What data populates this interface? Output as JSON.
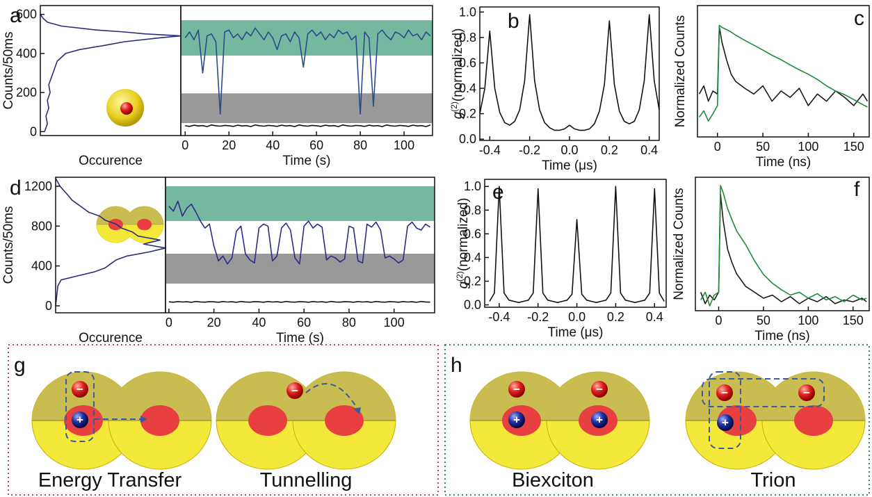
{
  "chart_data": [
    {
      "type": "line",
      "label": "a",
      "ylabel": "Counts/50ms",
      "xlabel": "Occurence",
      "xlim": [
        0,
        100
      ],
      "ylim": [
        -20,
        645
      ],
      "yticks": [
        0,
        200,
        400,
        600
      ],
      "series": [
        {
          "color": "#2b2b7a",
          "x": [
            3,
            5,
            4,
            6,
            5,
            7,
            6,
            8,
            10,
            12,
            18,
            28,
            45,
            60,
            85,
            100,
            75,
            60,
            40,
            15,
            5,
            2,
            0
          ],
          "values": [
            0,
            40,
            80,
            120,
            160,
            200,
            240,
            280,
            320,
            360,
            400,
            420,
            440,
            460,
            480,
            490,
            500,
            510,
            520,
            540,
            560,
            580,
            600
          ]
        }
      ]
    },
    {
      "type": "line",
      "xlabel": "Time (s)",
      "xlim": [
        -2,
        113
      ],
      "ylim": [
        -20,
        645
      ],
      "xticks": [
        0,
        20,
        40,
        60,
        80,
        100
      ],
      "bands": [
        {
          "color": "#3a9a78",
          "range": [
            389,
            570
          ]
        },
        {
          "color": "#6e6e6e",
          "range": [
            44,
            196
          ]
        }
      ],
      "x": [
        0,
        2,
        4,
        6,
        8,
        10,
        12,
        14,
        16,
        18,
        20,
        22,
        24,
        26,
        28,
        30,
        32,
        34,
        36,
        38,
        40,
        42,
        44,
        46,
        48,
        50,
        52,
        54,
        56,
        58,
        60,
        62,
        64,
        66,
        68,
        70,
        72,
        74,
        76,
        78,
        80,
        82,
        84,
        86,
        88,
        90,
        92,
        94,
        96,
        98,
        100,
        102,
        104,
        106,
        108,
        110,
        112
      ],
      "series": [
        {
          "color": "#2a4a8a",
          "values": [
            480,
            510,
            470,
            520,
            300,
            490,
            500,
            460,
            90,
            510,
            520,
            480,
            500,
            470,
            510,
            490,
            530,
            500,
            470,
            510,
            480,
            420,
            490,
            500,
            460,
            510,
            480,
            330,
            500,
            520,
            490,
            510,
            470,
            500,
            480,
            520,
            500,
            510,
            470,
            490,
            90,
            510,
            480,
            130,
            500,
            520,
            490,
            470,
            510,
            500,
            480,
            520,
            490,
            500,
            470,
            510,
            490
          ]
        },
        {
          "color": "#111111",
          "values": [
            30,
            27,
            33,
            29,
            31,
            26,
            34,
            30,
            28,
            32,
            30,
            27,
            33,
            29,
            31,
            26,
            34,
            30,
            28,
            32,
            30,
            27,
            33,
            29,
            31,
            26,
            34,
            30,
            28,
            32,
            30,
            27,
            33,
            29,
            31,
            26,
            34,
            30,
            28,
            32,
            30,
            27,
            33,
            29,
            31,
            26,
            34,
            30,
            28,
            32,
            30,
            27,
            33,
            29,
            31,
            26,
            34
          ]
        }
      ]
    },
    {
      "type": "line",
      "label": "b",
      "ylabel": [
        "g",
        "(2)",
        "(normalized)"
      ],
      "xlabel": "Time (μs)",
      "xlim": [
        -0.45,
        0.45
      ],
      "ylim": [
        -0.01,
        1.04
      ],
      "yticks": [
        {
          "value": 0,
          "label": "0.0"
        },
        0.2,
        0.4,
        0.6,
        0.8,
        {
          "value": 1,
          "label": "1.0"
        }
      ],
      "xticks": [
        -0.4,
        -0.2,
        {
          "value": 0,
          "label": "0.0"
        },
        0.2,
        0.4
      ],
      "x": [
        -0.45,
        -0.425,
        -0.4,
        -0.375,
        -0.35,
        -0.325,
        -0.3,
        -0.275,
        -0.25,
        -0.225,
        -0.2,
        -0.175,
        -0.15,
        -0.125,
        -0.1,
        -0.075,
        -0.05,
        -0.025,
        0,
        0.025,
        0.05,
        0.075,
        0.1,
        0.125,
        0.15,
        0.175,
        0.2,
        0.225,
        0.25,
        0.275,
        0.3,
        0.325,
        0.35,
        0.375,
        0.4,
        0.425,
        0.45
      ],
      "series": [
        {
          "color": "#111111",
          "values": [
            0.2,
            0.4,
            0.85,
            0.4,
            0.21,
            0.13,
            0.11,
            0.14,
            0.23,
            0.46,
            0.98,
            0.46,
            0.23,
            0.13,
            0.09,
            0.07,
            0.07,
            0.08,
            0.11,
            0.08,
            0.07,
            0.07,
            0.08,
            0.12,
            0.22,
            0.43,
            0.93,
            0.43,
            0.22,
            0.14,
            0.12,
            0.14,
            0.23,
            0.46,
            0.98,
            0.46,
            0.23
          ]
        }
      ]
    },
    {
      "type": "line",
      "label": "c",
      "yscale": "log",
      "ylabel": "Normalized Counts",
      "xlabel": "Time (ns)",
      "xlim": [
        -22,
        167
      ],
      "ylim": [
        0.02,
        2
      ],
      "xticks": [
        0,
        50,
        100,
        150
      ],
      "x": [
        -20,
        -15,
        -10,
        -5,
        0,
        2,
        5,
        10,
        15,
        20,
        30,
        40,
        50,
        60,
        70,
        80,
        90,
        100,
        110,
        120,
        130,
        140,
        150,
        160,
        165
      ],
      "series": [
        {
          "color": "#1a1a1a",
          "values": [
            0.09,
            0.12,
            0.07,
            0.1,
            0.09,
            0.95,
            0.55,
            0.3,
            0.18,
            0.14,
            0.11,
            0.09,
            0.12,
            0.07,
            0.1,
            0.08,
            0.11,
            0.06,
            0.09,
            0.07,
            0.1,
            0.08,
            0.06,
            0.09,
            0.07
          ]
        },
        {
          "color": "#1e8a3c",
          "values": [
            0.04,
            0.05,
            0.035,
            0.045,
            0.06,
            1.0,
            0.93,
            0.86,
            0.79,
            0.71,
            0.59,
            0.5,
            0.42,
            0.35,
            0.3,
            0.25,
            0.21,
            0.18,
            0.15,
            0.12,
            0.1,
            0.088,
            0.074,
            0.062,
            0.057
          ]
        }
      ]
    },
    {
      "type": "line",
      "label": "d",
      "ylabel": "Counts/50ms",
      "xlabel": "Occurence",
      "xlim": [
        0,
        100
      ],
      "ylim": [
        -70,
        1290
      ],
      "yticks": [
        0,
        400,
        800,
        1200
      ],
      "series": [
        {
          "color": "#2b2b7a",
          "x": [
            0,
            2,
            5,
            20,
            35,
            45,
            50,
            55,
            65,
            85,
            100,
            80,
            95,
            75,
            70,
            60,
            55,
            45,
            40,
            30,
            25,
            20,
            15,
            12,
            8,
            4,
            0
          ],
          "values": [
            0,
            200,
            260,
            300,
            340,
            380,
            420,
            460,
            500,
            540,
            580,
            620,
            660,
            700,
            740,
            780,
            820,
            860,
            900,
            940,
            980,
            1020,
            1060,
            1100,
            1150,
            1200,
            1280
          ]
        }
      ]
    },
    {
      "type": "line",
      "xlabel": "Time (s)",
      "xlim": [
        -1.5,
        118
      ],
      "ylim": [
        -70,
        1290
      ],
      "xticks": [
        0,
        20,
        40,
        60,
        80,
        100
      ],
      "bands": [
        {
          "color": "#3a9a78",
          "range": [
            851,
            1200
          ]
        },
        {
          "color": "#6e6e6e",
          "range": [
            223,
            523
          ]
        }
      ],
      "x": [
        0,
        2,
        4,
        6,
        8,
        10,
        12,
        14,
        16,
        18,
        20,
        22,
        24,
        26,
        28,
        30,
        32,
        34,
        36,
        38,
        40,
        42,
        44,
        46,
        48,
        50,
        52,
        54,
        56,
        58,
        60,
        62,
        64,
        66,
        68,
        70,
        72,
        74,
        76,
        78,
        80,
        82,
        84,
        86,
        88,
        90,
        92,
        94,
        96,
        98,
        100,
        102,
        104,
        106,
        108,
        110,
        112,
        114,
        116
      ],
      "series": [
        {
          "color": "#2b2b8a",
          "values": [
            1000,
            950,
            1050,
            900,
            980,
            1020,
            940,
            850,
            780,
            820,
            600,
            450,
            500,
            420,
            480,
            750,
            800,
            520,
            460,
            430,
            780,
            820,
            800,
            450,
            500,
            780,
            830,
            760,
            480,
            420,
            800,
            850,
            780,
            820,
            790,
            460,
            500,
            480,
            440,
            470,
            800,
            780,
            450,
            430,
            820,
            790,
            840,
            760,
            480,
            500,
            470,
            430,
            460,
            800,
            840,
            780,
            760,
            820,
            790
          ]
        },
        {
          "color": "#111111",
          "values": [
            40,
            36,
            43,
            38,
            41,
            35,
            44,
            39,
            37,
            42,
            40,
            36,
            43,
            38,
            41,
            35,
            44,
            39,
            37,
            42,
            40,
            36,
            43,
            38,
            41,
            35,
            44,
            39,
            37,
            42,
            40,
            36,
            43,
            38,
            41,
            35,
            44,
            39,
            37,
            42,
            40,
            36,
            43,
            38,
            41,
            35,
            44,
            39,
            37,
            42,
            40,
            36,
            43,
            38,
            41,
            35,
            44,
            39,
            37
          ]
        }
      ]
    },
    {
      "type": "line",
      "label": "e",
      "ylabel": [
        "g",
        "(2)",
        "(normalized)"
      ],
      "xlabel": "Time (μs)",
      "xlim": [
        -0.475,
        0.46
      ],
      "ylim": [
        -0.02,
        1.06
      ],
      "yticks": [
        {
          "value": 0,
          "label": "0.0"
        },
        0.2,
        0.4,
        0.6,
        0.8,
        {
          "value": 1,
          "label": "1.0"
        }
      ],
      "xticks": [
        -0.4,
        -0.2,
        {
          "value": 0,
          "label": "0.0"
        },
        0.2,
        0.4
      ],
      "x": [
        -0.45,
        -0.425,
        -0.4,
        -0.375,
        -0.35,
        -0.325,
        -0.3,
        -0.275,
        -0.25,
        -0.225,
        -0.2,
        -0.175,
        -0.15,
        -0.125,
        -0.1,
        -0.075,
        -0.05,
        -0.025,
        0,
        0.025,
        0.05,
        0.075,
        0.1,
        0.125,
        0.15,
        0.175,
        0.2,
        0.225,
        0.25,
        0.275,
        0.3,
        0.325,
        0.35,
        0.375,
        0.4,
        0.425,
        0.45
      ],
      "series": [
        {
          "color": "#111111",
          "values": [
            0.03,
            0.1,
            1.0,
            0.1,
            0.04,
            0.03,
            0.02,
            0.03,
            0.04,
            0.1,
            0.98,
            0.1,
            0.04,
            0.03,
            0.02,
            0.03,
            0.04,
            0.09,
            0.72,
            0.09,
            0.04,
            0.03,
            0.02,
            0.03,
            0.04,
            0.1,
            1.0,
            0.1,
            0.04,
            0.03,
            0.02,
            0.03,
            0.04,
            0.1,
            0.98,
            0.1,
            0.03
          ]
        }
      ]
    },
    {
      "type": "line",
      "label": "f",
      "yscale": "log",
      "ylabel": "Normalized Counts",
      "xlabel": "Time (ns)",
      "xlim": [
        -26,
        168
      ],
      "ylim": [
        0.01,
        1.5
      ],
      "xticks": [
        0,
        50,
        100,
        150
      ],
      "x": [
        -20,
        -15,
        -10,
        -5,
        0,
        2,
        5,
        10,
        15,
        20,
        30,
        40,
        50,
        60,
        70,
        80,
        90,
        100,
        110,
        120,
        130,
        140,
        150,
        160,
        165
      ],
      "series": [
        {
          "color": "#1a1a1a",
          "values": [
            0.02,
            0.013,
            0.018,
            0.015,
            0.02,
            0.8,
            0.3,
            0.1,
            0.06,
            0.04,
            0.025,
            0.02,
            0.016,
            0.018,
            0.014,
            0.017,
            0.013,
            0.016,
            0.014,
            0.017,
            0.013,
            0.015,
            0.014,
            0.016,
            0.014
          ]
        },
        {
          "color": "#1e8a3c",
          "values": [
            0.015,
            0.02,
            0.012,
            0.018,
            0.02,
            1.1,
            0.85,
            0.46,
            0.3,
            0.2,
            0.12,
            0.065,
            0.039,
            0.028,
            0.022,
            0.018,
            0.02,
            0.016,
            0.019,
            0.015,
            0.017,
            0.014,
            0.018,
            0.015,
            0.016
          ]
        }
      ]
    }
  ],
  "diagrams": {
    "electron": "−",
    "hole": "+",
    "g": {
      "label": "g",
      "captions": [
        "Energy Transfer",
        "Tunnelling"
      ]
    },
    "h": {
      "label": "h",
      "captions": [
        "Biexciton",
        "Trion"
      ]
    }
  }
}
